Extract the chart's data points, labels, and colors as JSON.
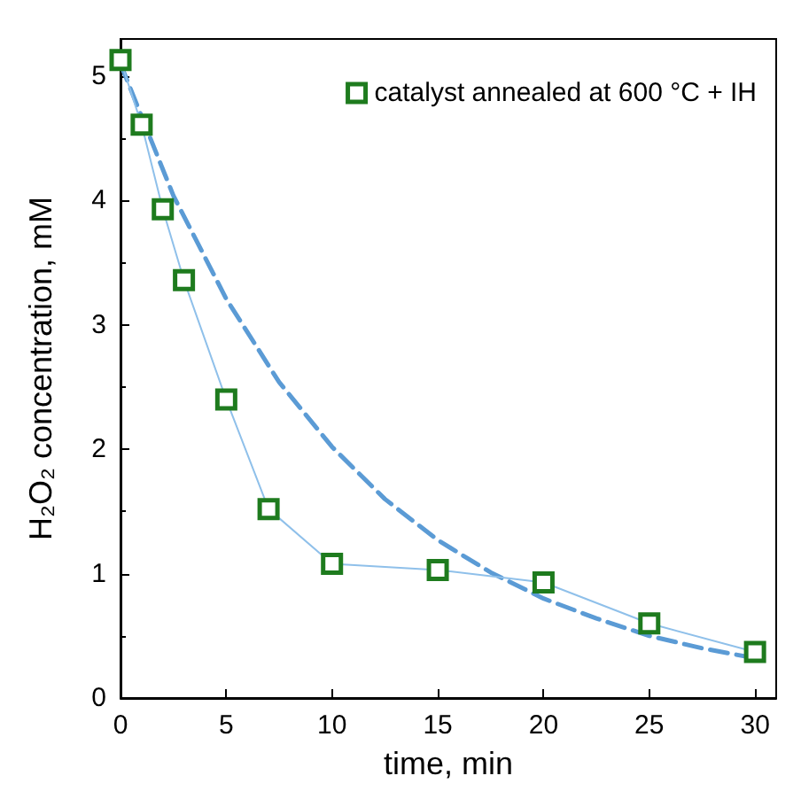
{
  "chart_data": {
    "type": "line",
    "xlabel": "time, min",
    "ylabel": "H₂O₂ concentration, mM",
    "xlim": [
      0,
      31
    ],
    "xticks": [
      0,
      5,
      10,
      15,
      20,
      25,
      30
    ],
    "ylim": [
      0,
      5.3
    ],
    "yticks": [
      0,
      1,
      2,
      3,
      4,
      5
    ],
    "grid": false,
    "legend": "top right",
    "marker": "square",
    "series": [
      {
        "name": "catalyst annealed at 600 °C + IH",
        "color": "#1e7b1e",
        "x": [
          0,
          1,
          2,
          3,
          5,
          7,
          10,
          15,
          20,
          25,
          30
        ],
        "values": [
          5.13,
          4.61,
          3.93,
          3.36,
          2.4,
          1.52,
          1.08,
          1.03,
          0.93,
          0.6,
          0.37
        ]
      },
      {
        "color": "#5b9bd5",
        "line_style": "dashed",
        "marker": "none",
        "x": [
          0,
          2.5,
          5,
          7.5,
          10,
          12.5,
          15,
          17.5,
          20,
          22.5,
          25,
          27.5,
          30
        ],
        "values": [
          5.1,
          4.04,
          3.21,
          2.54,
          2.02,
          1.6,
          1.27,
          1.01,
          0.8,
          0.64,
          0.5,
          0.4,
          0.32
        ]
      }
    ]
  }
}
